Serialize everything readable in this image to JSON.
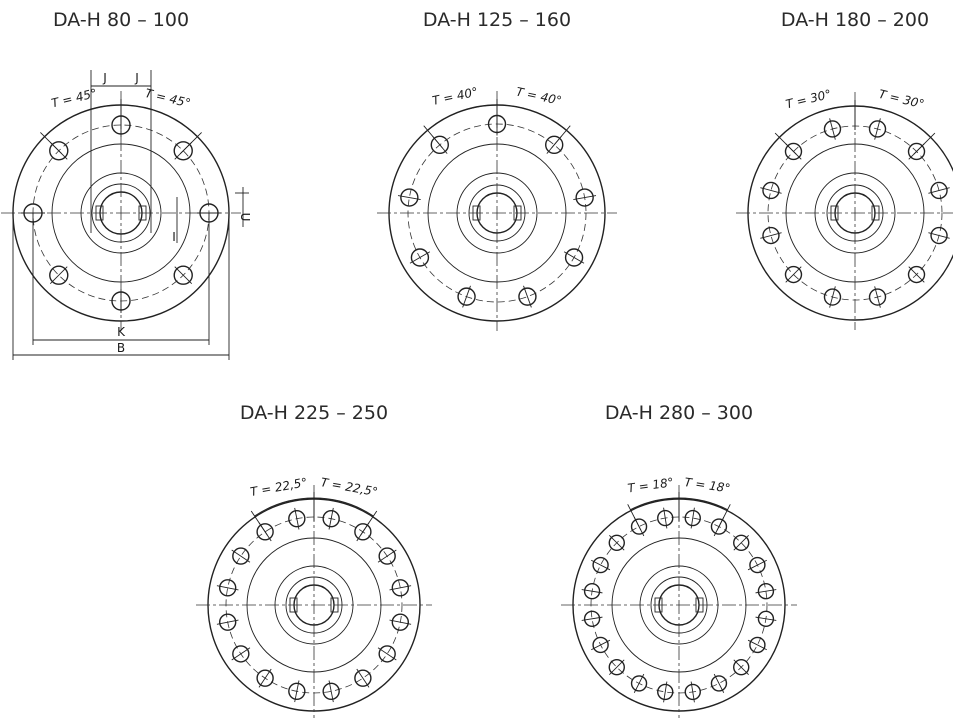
{
  "diagrams": [
    {
      "title": "DA-H 80 – 100",
      "bolt_count": 8,
      "angle_left_label": "T = 45°",
      "angle_right_label": "T = 45°",
      "labels": {
        "J_left": "J",
        "J_right": "J",
        "U": "U",
        "I": "I",
        "K": "K",
        "B": "B"
      }
    },
    {
      "title": "DA-H 125 – 160",
      "bolt_count": 9,
      "angle_left_label": "T = 40°",
      "angle_right_label": "T = 40°"
    },
    {
      "title": "DA-H 180 – 200",
      "bolt_count": 12,
      "angle_left_label": "T = 30°",
      "angle_right_label": "T = 30°"
    },
    {
      "title": "DA-H 225 – 250",
      "bolt_count": 16,
      "angle_left_label": "T = 22,5°",
      "angle_right_label": "T = 22,5°"
    },
    {
      "title": "DA-H 280 – 300",
      "bolt_count": 20,
      "angle_left_label": "T = 18°",
      "angle_right_label": "T = 18°"
    }
  ],
  "colors": {
    "flange_fill": "#c8e4ef",
    "line": "#222222",
    "background": "#ffffff"
  }
}
